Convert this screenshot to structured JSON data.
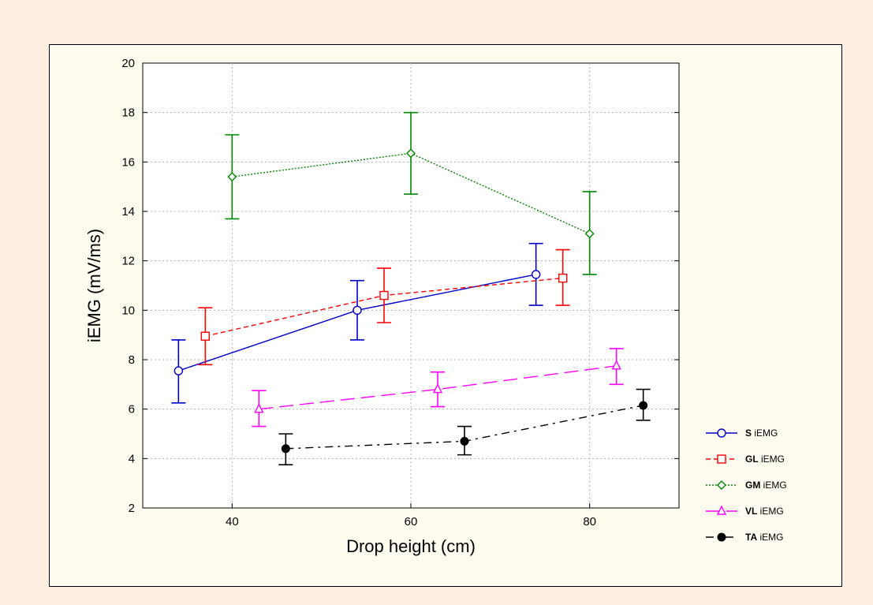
{
  "chart_data": {
    "type": "line",
    "title": "",
    "xlabel": "Drop height (cm)",
    "ylabel": "iEMG (mV/ms)",
    "xlim": [
      30,
      90
    ],
    "ylim": [
      2,
      20
    ],
    "xticks": [
      40,
      60,
      80
    ],
    "yticks": [
      2,
      4,
      6,
      8,
      10,
      12,
      14,
      16,
      18,
      20
    ],
    "grid": true,
    "legend_position": "right",
    "series": [
      {
        "name": "S",
        "name_suffix": "iEMG",
        "color": "#0000cc",
        "dash": "solid",
        "marker": "circle-open",
        "points": [
          {
            "x": 34,
            "y": 7.55,
            "lo": 6.25,
            "hi": 8.8
          },
          {
            "x": 54,
            "y": 10.0,
            "lo": 8.8,
            "hi": 11.2
          },
          {
            "x": 74,
            "y": 11.45,
            "lo": 10.2,
            "hi": 12.7
          }
        ]
      },
      {
        "name": "GL",
        "name_suffix": "iEMG",
        "color": "#ff0000",
        "dash": "short-dash",
        "marker": "square-open",
        "points": [
          {
            "x": 37,
            "y": 8.95,
            "lo": 7.8,
            "hi": 10.1
          },
          {
            "x": 57,
            "y": 10.6,
            "lo": 9.5,
            "hi": 11.7
          },
          {
            "x": 77,
            "y": 11.3,
            "lo": 10.2,
            "hi": 12.45
          }
        ]
      },
      {
        "name": "GM",
        "name_suffix": "iEMG",
        "color": "#008800",
        "dash": "dotted",
        "marker": "diamond-open",
        "points": [
          {
            "x": 40,
            "y": 15.4,
            "lo": 13.7,
            "hi": 17.1
          },
          {
            "x": 60,
            "y": 16.35,
            "lo": 14.7,
            "hi": 18.0
          },
          {
            "x": 80,
            "y": 13.1,
            "lo": 11.45,
            "hi": 14.8
          }
        ]
      },
      {
        "name": "VL",
        "name_suffix": "iEMG",
        "color": "#ff00ff",
        "dash": "long-dash",
        "marker": "triangle-open",
        "points": [
          {
            "x": 43,
            "y": 6.0,
            "lo": 5.3,
            "hi": 6.75
          },
          {
            "x": 63,
            "y": 6.8,
            "lo": 6.1,
            "hi": 7.5
          },
          {
            "x": 83,
            "y": 7.75,
            "lo": 7.0,
            "hi": 8.45
          }
        ]
      },
      {
        "name": "TA",
        "name_suffix": "iEMG",
        "color": "#000000",
        "dash": "dash-dot",
        "marker": "circle-filled",
        "points": [
          {
            "x": 46,
            "y": 4.4,
            "lo": 3.75,
            "hi": 5.0
          },
          {
            "x": 66,
            "y": 4.7,
            "lo": 4.15,
            "hi": 5.3
          },
          {
            "x": 86,
            "y": 6.15,
            "lo": 5.55,
            "hi": 6.8
          }
        ]
      }
    ]
  }
}
